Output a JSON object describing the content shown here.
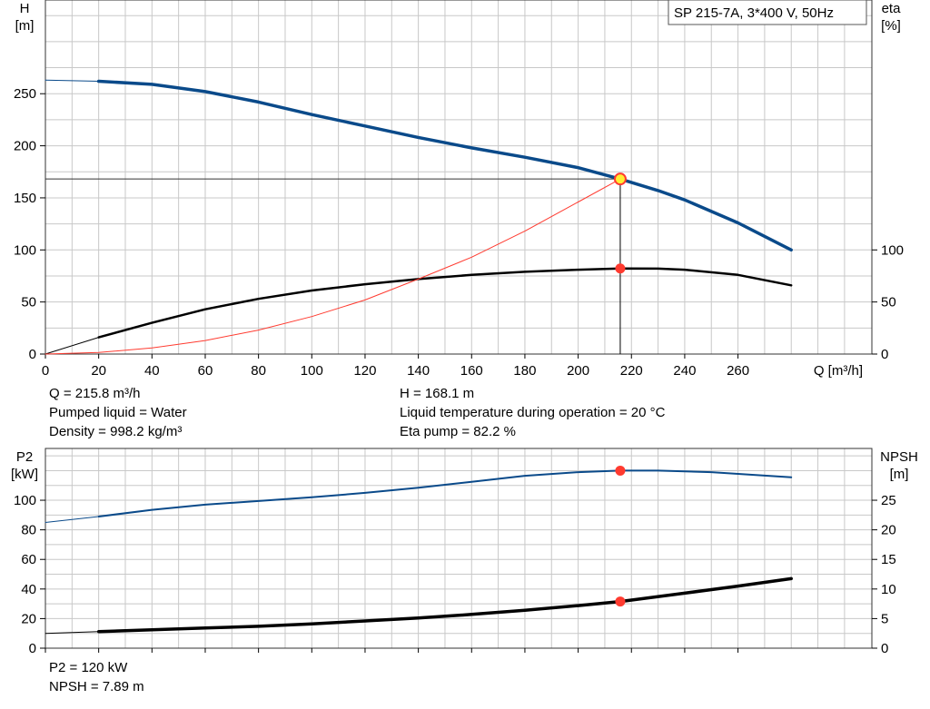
{
  "pump_label": "SP 215-7A, 3*400 V, 50Hz",
  "colors": {
    "blue": "#0a4a8a",
    "black": "#000000",
    "red": "#ff3b30",
    "point_yellow": "#ffee33",
    "grid": "#c8c8c8"
  },
  "top_info": {
    "left": [
      "Q = 215.8 m³/h",
      "Pumped liquid = Water",
      "Density = 998.2 kg/m³"
    ],
    "right": [
      "H = 168.1 m",
      "Liquid temperature during operation = 20 °C",
      "Eta pump = 82.2 %"
    ]
  },
  "bottom_info": [
    "P2 = 120 kW",
    "NPSH = 7.89 m"
  ],
  "chart_data": [
    {
      "type": "line",
      "title": "",
      "xlabel": "Q [m³/h]",
      "xlim": [
        0,
        300
      ],
      "x_ticks": [
        0,
        20,
        40,
        60,
        80,
        100,
        120,
        140,
        160,
        180,
        200,
        220,
        240,
        260
      ],
      "left_axis": {
        "label_top": "H",
        "label_unit": "[m]",
        "ylim": [
          0,
          340
        ],
        "ticks": [
          0,
          50,
          100,
          150,
          200,
          250
        ]
      },
      "right_axis": {
        "label_top": "eta",
        "label_unit": "[%]",
        "ylim": [
          0,
          340
        ],
        "ticks": [
          0,
          50,
          100
        ]
      },
      "grid": true,
      "series": [
        {
          "key": "H_thin",
          "axis": "left",
          "color": "blue",
          "width": 1,
          "x": [
            0,
            20
          ],
          "y": [
            263,
            262
          ]
        },
        {
          "key": "H",
          "axis": "left",
          "color": "blue",
          "width": 3.5,
          "x": [
            20,
            40,
            60,
            80,
            100,
            120,
            140,
            160,
            180,
            200,
            215.8,
            230,
            240,
            260,
            280
          ],
          "y": [
            262,
            259,
            252,
            242,
            230,
            219,
            208,
            198,
            189,
            179,
            168.1,
            157,
            148,
            126,
            100
          ]
        },
        {
          "key": "eta_thin",
          "axis": "right",
          "color": "black",
          "width": 1,
          "x": [
            0,
            20
          ],
          "y": [
            0,
            16
          ]
        },
        {
          "key": "eta",
          "axis": "right",
          "color": "black",
          "width": 2.5,
          "x": [
            20,
            40,
            60,
            80,
            100,
            120,
            140,
            160,
            180,
            200,
            215.8,
            230,
            240,
            260,
            280
          ],
          "y": [
            16,
            30,
            43,
            53,
            61,
            67,
            72,
            76,
            79,
            81,
            82.2,
            82,
            81,
            76,
            66
          ]
        },
        {
          "key": "system_curve",
          "axis": "left",
          "color": "red",
          "width": 1,
          "x": [
            0,
            20,
            40,
            60,
            80,
            100,
            120,
            140,
            160,
            180,
            200,
            215.8
          ],
          "y": [
            0,
            1.5,
            5.8,
            13,
            23,
            36,
            52,
            72,
            93,
            118,
            146,
            168.1
          ]
        }
      ],
      "duty_point": {
        "x": 215.8,
        "h": 168.1,
        "eta": 82.2
      }
    },
    {
      "type": "line",
      "title": "",
      "xlabel": "",
      "xlim": [
        0,
        300
      ],
      "x_ticks": [
        0,
        20,
        40,
        60,
        80,
        100,
        120,
        140,
        160,
        180,
        200,
        220,
        240,
        260
      ],
      "left_axis": {
        "label_top": "P2",
        "label_unit": "[kW]",
        "ylim": [
          0,
          135
        ],
        "ticks": [
          0,
          20,
          40,
          60,
          80,
          100
        ]
      },
      "right_axis": {
        "label_top": "NPSH",
        "label_unit": "[m]",
        "ylim": [
          0,
          33.75
        ],
        "ticks": [
          0,
          5,
          10,
          15,
          20,
          25
        ]
      },
      "grid": true,
      "series": [
        {
          "key": "P2_thin",
          "axis": "left",
          "color": "blue",
          "width": 1,
          "x": [
            0,
            20
          ],
          "y": [
            85,
            89
          ]
        },
        {
          "key": "P2",
          "axis": "left",
          "color": "blue",
          "width": 2,
          "x": [
            20,
            40,
            60,
            80,
            100,
            120,
            140,
            160,
            180,
            200,
            215.8,
            230,
            250,
            280
          ],
          "y": [
            89,
            93.5,
            97,
            99.5,
            102,
            105,
            108.5,
            112.5,
            116.5,
            119,
            120,
            120,
            119,
            115.5
          ]
        },
        {
          "key": "NPSH_thin",
          "axis": "right",
          "color": "black",
          "width": 1,
          "x": [
            0,
            20
          ],
          "y": [
            2.5,
            2.8
          ]
        },
        {
          "key": "NPSH",
          "axis": "right",
          "color": "black",
          "width": 3.5,
          "x": [
            20,
            40,
            60,
            80,
            100,
            120,
            140,
            160,
            180,
            200,
            215.8,
            240,
            260,
            280
          ],
          "y": [
            2.8,
            3.1,
            3.4,
            3.7,
            4.1,
            4.6,
            5.1,
            5.7,
            6.4,
            7.2,
            7.89,
            9.3,
            10.5,
            11.75
          ]
        }
      ],
      "duty_point": {
        "x": 215.8,
        "p2": 120,
        "npsh": 7.89
      }
    }
  ]
}
